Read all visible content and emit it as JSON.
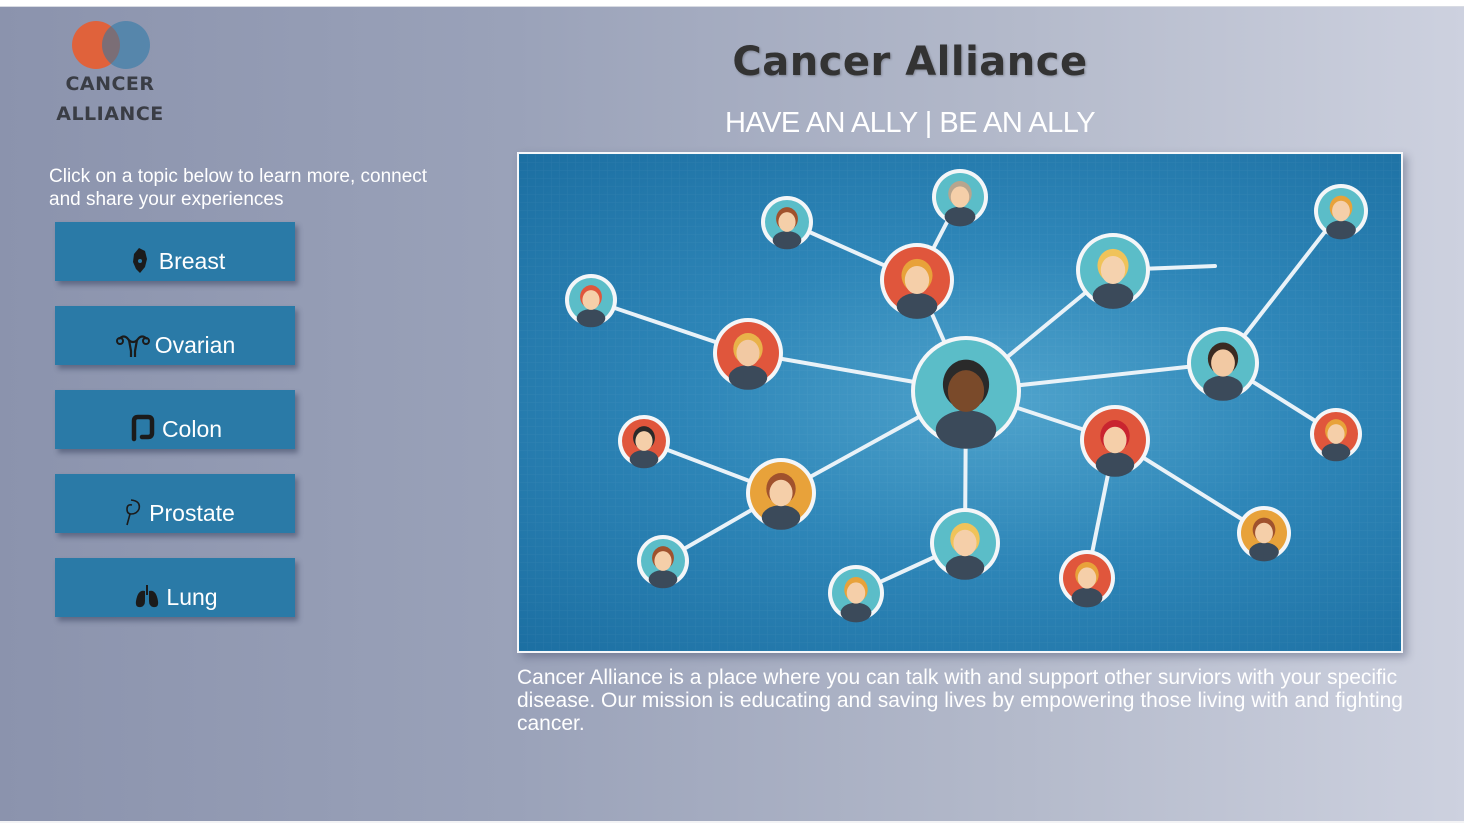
{
  "logo": {
    "line1": "CANCER",
    "line2": "ALLIANCE",
    "colors": {
      "left_circle": "#e0623b",
      "right_circle": "#2f7fb0"
    }
  },
  "intro": "Click on a topic below to learn more, connect and share your experiences",
  "topics": [
    {
      "label": "Breast",
      "icon": "breast-icon"
    },
    {
      "label": "Ovarian",
      "icon": "ovary-icon"
    },
    {
      "label": "Colon",
      "icon": "colon-icon"
    },
    {
      "label": "Prostate",
      "icon": "prostate-icon"
    },
    {
      "label": "Lung",
      "icon": "lungs-icon"
    }
  ],
  "header": {
    "title": "Cancer Alliance",
    "tagline": "HAVE AN ALLY | BE AN ALLY"
  },
  "hero": {
    "icon": "people-network-illustration"
  },
  "mission": "Cancer Alliance is a place where you can talk with and support other surviors with your specific disease. Our mission is educating and saving lives by empowering those living with and fighting cancer.",
  "colors": {
    "button_bg": "#2a7aa7",
    "title_text": "#333333",
    "body_text": "#ffffff"
  }
}
